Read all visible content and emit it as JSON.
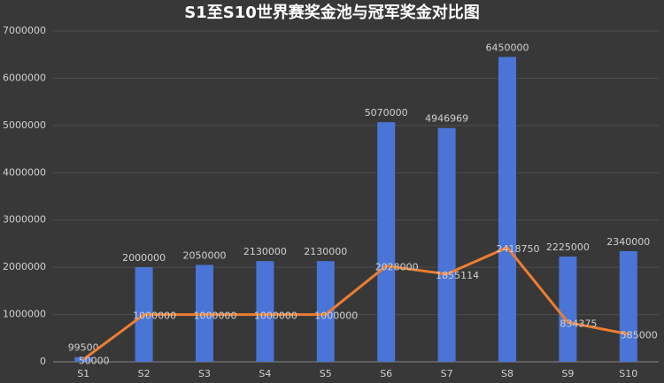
{
  "chart_data": {
    "type": "bar",
    "title": "S1至S10世界赛奖金池与冠军奖金对比图",
    "categories": [
      "S1",
      "S2",
      "S3",
      "S4",
      "S5",
      "S6",
      "S7",
      "S8",
      "S9",
      "S10"
    ],
    "series": [
      {
        "type": "bar",
        "color": "#4a74d6",
        "values": [
          99500,
          2000000,
          2050000,
          2130000,
          2130000,
          5070000,
          4946969,
          6450000,
          2225000,
          2340000
        ]
      },
      {
        "type": "line",
        "color": "#ed7d31",
        "values": [
          50000,
          1000000,
          1000000,
          1000000,
          1000000,
          2028000,
          1855114,
          2418750,
          834375,
          585000
        ]
      }
    ],
    "ylim": [
      0,
      7000000
    ],
    "yticks": [
      0,
      1000000,
      2000000,
      3000000,
      4000000,
      5000000,
      6000000,
      7000000
    ],
    "grid": true
  }
}
